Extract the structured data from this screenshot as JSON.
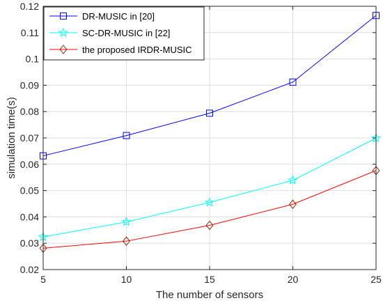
{
  "chart_data": {
    "type": "line",
    "title": "",
    "xlabel": "The number of sensors",
    "ylabel": "simulation time(s)",
    "x": [
      5,
      10,
      15,
      20,
      25
    ],
    "xlim": [
      5,
      25
    ],
    "ylim": [
      0.02,
      0.12
    ],
    "xticks": [
      "5",
      "10",
      "15",
      "20",
      "25"
    ],
    "yticks": [
      "0.02",
      "0.03",
      "0.04",
      "0.05",
      "0.06",
      "0.07",
      "0.08",
      "0.09",
      "0.1",
      "0.11",
      "0.12"
    ],
    "grid": true,
    "legend_position": "top-left",
    "series": [
      {
        "name": "DR-MUSIC in [20]",
        "values": [
          0.0632,
          0.0709,
          0.0794,
          0.0912,
          0.1165
        ],
        "color": "#0000ff",
        "marker": "square"
      },
      {
        "name": "SC-DR-MUSIC in [22]",
        "values": [
          0.0324,
          0.0381,
          0.0455,
          0.0539,
          0.0699
        ],
        "color": "#00ffff",
        "marker": "pentagram"
      },
      {
        "name": "the proposed IRDR-MUSIC",
        "values": [
          0.0281,
          0.0308,
          0.0368,
          0.0448,
          0.0576
        ],
        "color": "#ff0000",
        "marker_color": "#8b2500",
        "marker": "diamond"
      }
    ]
  }
}
